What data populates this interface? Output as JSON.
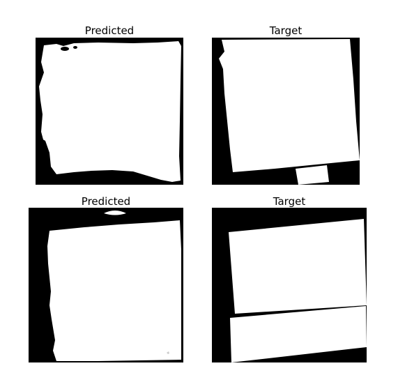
{
  "panels": [
    {
      "title": "Predicted"
    },
    {
      "title": "Target"
    },
    {
      "title": "Predicted"
    },
    {
      "title": "Target"
    }
  ],
  "colors": {
    "background": "#000000",
    "mask": "#ffffff",
    "page": "#ffffff"
  }
}
